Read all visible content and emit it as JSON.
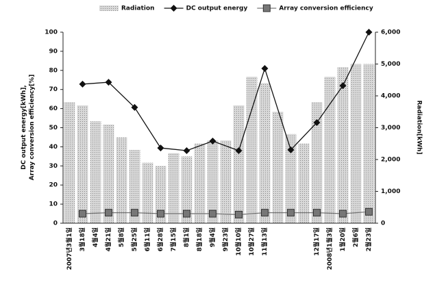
{
  "chart_data": {
    "type": "bar-line",
    "y_label": "DC output energy[kWh],\nArray conversion efficiency[%]",
    "y2_label": "Radiation[kWh]",
    "categories": [
      "2007년3월1일",
      "3월18일",
      "4월4일",
      "4월21일",
      "5월8일",
      "5월25일",
      "6월11일",
      "6월28일",
      "7월15일",
      "8월1일",
      "8월18일",
      "9월4일",
      "9월23일",
      "10월10일",
      "10월27일",
      "11월13일",
      null,
      null,
      null,
      "12월17일",
      "2008년1월3일",
      "1월20일",
      "2월6일",
      "2월23일"
    ],
    "ylim": [
      0,
      100
    ],
    "yticks": [
      0,
      10,
      20,
      30,
      40,
      50,
      60,
      70,
      80,
      90,
      100
    ],
    "y2lim": [
      0,
      6000
    ],
    "y2ticks": [
      0,
      {
        "value": 1000,
        "label": "1,000"
      },
      {
        "value": 2000,
        "label": "2,000"
      },
      {
        "value": 3000,
        "label": "3,000"
      },
      {
        "value": 4000,
        "label": "4,000"
      },
      {
        "value": 5000,
        "label": "5,000"
      },
      {
        "value": 6000,
        "label": "6,000"
      }
    ],
    "series": [
      {
        "name": "Radiation",
        "kind": "bar",
        "axis": "y2",
        "color": "#c8c8c8",
        "values": [
          3800,
          3700,
          3200,
          3100,
          2700,
          2300,
          1900,
          1800,
          2200,
          2100,
          2500,
          2600,
          2600,
          3700,
          4600,
          4400,
          3500,
          2800,
          2500,
          3800,
          4600,
          4900,
          5000,
          5000
        ]
      },
      {
        "name": "DC output energy",
        "kind": "line",
        "color": "#111111",
        "marker": "diamond",
        "x": [
          1,
          3,
          5,
          7,
          9,
          11,
          13,
          15,
          17,
          19,
          21,
          23
        ],
        "values": [
          72.8,
          73.8,
          60.6,
          39.4,
          38,
          43,
          38,
          81,
          38.4,
          52.7,
          72,
          100
        ]
      },
      {
        "name": "Array conversion efficiency",
        "kind": "line",
        "color": "#777777",
        "marker": "square",
        "x": [
          1,
          3,
          5,
          7,
          9,
          11,
          13,
          15,
          17,
          19,
          21,
          23
        ],
        "values": [
          5,
          5.5,
          5.5,
          5,
          5,
          5,
          4.5,
          5.5,
          5.5,
          5.5,
          5,
          6
        ]
      }
    ]
  }
}
